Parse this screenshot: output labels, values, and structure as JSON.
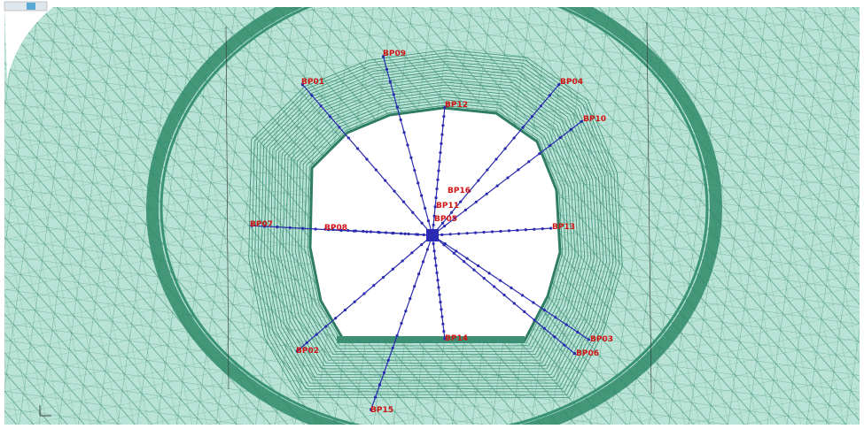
{
  "boreholes": [
    {
      "label": "BP01"
    },
    {
      "label": "BP09"
    },
    {
      "label": "BP12"
    },
    {
      "label": "BP04"
    },
    {
      "label": "BP10"
    },
    {
      "label": "BP16"
    },
    {
      "label": "BP11"
    },
    {
      "label": "BP05"
    },
    {
      "label": "BP07"
    },
    {
      "label": "BP08"
    },
    {
      "label": "BP13"
    },
    {
      "label": "BP14"
    },
    {
      "label": "BP02"
    },
    {
      "label": "BP03"
    },
    {
      "label": "BP06"
    },
    {
      "label": "BP15"
    }
  ]
}
